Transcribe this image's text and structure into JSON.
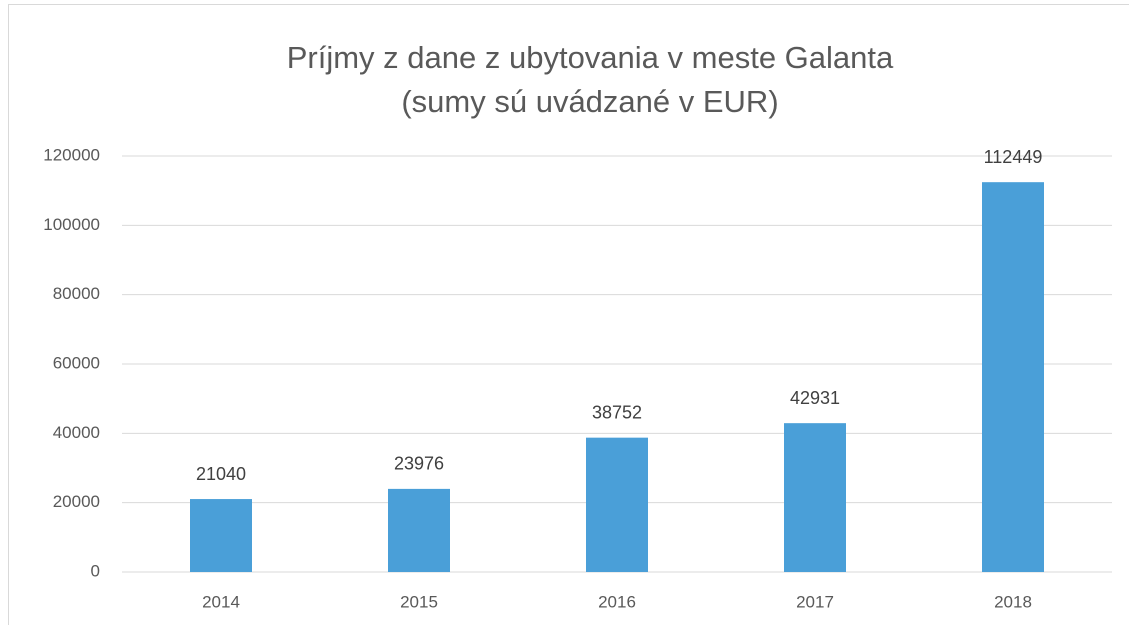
{
  "chart_data": {
    "type": "bar",
    "title": "Príjmy z dane z ubytovania v meste Galanta",
    "subtitle": "(sumy sú uvádzané v EUR)",
    "categories": [
      "2014",
      "2015",
      "2016",
      "2017",
      "2018"
    ],
    "values": [
      21040,
      23976,
      38752,
      42931,
      112449
    ],
    "color": "#4a9fd8",
    "ylim": [
      0,
      120000
    ],
    "yticks": [
      0,
      20000,
      40000,
      60000,
      80000,
      100000,
      120000
    ],
    "grid": true
  }
}
